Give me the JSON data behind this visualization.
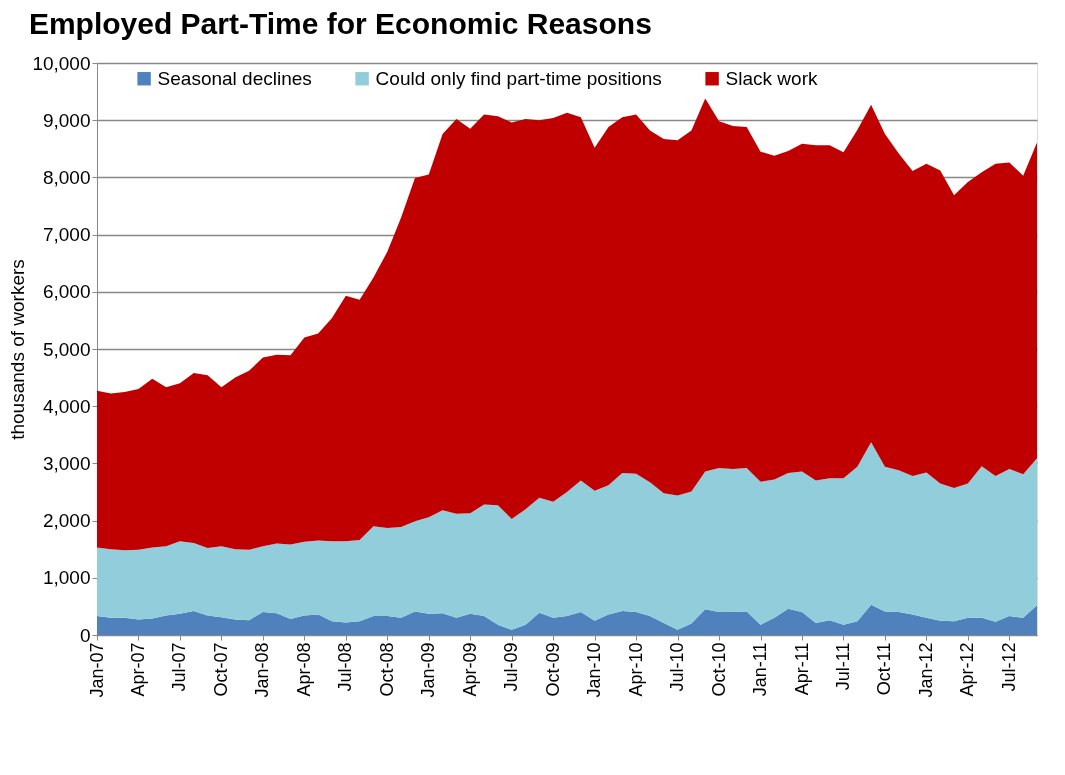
{
  "chart_data": {
    "type": "area",
    "title": "Employed Part-Time for Economic Reasons",
    "ylabel": "thousands of workers",
    "categories": [
      "Jan-07",
      null,
      null,
      "Apr-07",
      null,
      null,
      "Jul-07",
      null,
      null,
      "Oct-07",
      null,
      null,
      "Jan-08",
      null,
      null,
      "Apr-08",
      null,
      null,
      "Jul-08",
      null,
      null,
      "Oct-08",
      null,
      null,
      "Jan-09",
      null,
      null,
      "Apr-09",
      null,
      null,
      "Jul-09",
      null,
      null,
      "Oct-09",
      null,
      null,
      "Jan-10",
      null,
      null,
      "Apr-10",
      null,
      null,
      "Jul-10",
      null,
      null,
      "Oct-10",
      null,
      null,
      "Jan-11",
      null,
      null,
      "Apr-11",
      null,
      null,
      "Jul-11",
      null,
      null,
      "Oct-11",
      null,
      null,
      "Jan-12",
      null,
      null,
      "Apr-12",
      null,
      null,
      "Jul-12",
      null,
      null
    ],
    "stacked": true,
    "series": [
      {
        "name": "Seasonal declines",
        "color": "#4f81bd",
        "values": [
          330,
          300,
          300,
          270,
          290,
          340,
          370,
          420,
          340,
          310,
          270,
          260,
          400,
          380,
          280,
          340,
          360,
          240,
          220,
          240,
          330,
          330,
          300,
          410,
          370,
          380,
          300,
          370,
          330,
          180,
          90,
          180,
          390,
          300,
          330,
          400,
          250,
          360,
          420,
          400,
          330,
          210,
          90,
          200,
          450,
          400,
          400,
          410,
          180,
          300,
          460,
          400,
          210,
          260,
          180,
          240,
          530,
          410,
          400,
          360,
          300,
          250,
          240,
          300,
          300,
          230,
          330,
          300,
          520
        ]
      },
      {
        "name": "Could only find part-time positions",
        "color": "#92cddc",
        "values": [
          1200,
          1200,
          1180,
          1220,
          1240,
          1210,
          1270,
          1190,
          1180,
          1240,
          1230,
          1230,
          1150,
          1220,
          1300,
          1290,
          1290,
          1400,
          1420,
          1420,
          1570,
          1540,
          1590,
          1580,
          1690,
          1800,
          1820,
          1760,
          1950,
          2090,
          1940,
          2020,
          2010,
          2030,
          2170,
          2300,
          2270,
          2260,
          2410,
          2420,
          2340,
          2270,
          2350,
          2310,
          2410,
          2520,
          2500,
          2510,
          2500,
          2420,
          2370,
          2460,
          2490,
          2480,
          2560,
          2700,
          2840,
          2530,
          2480,
          2420,
          2540,
          2400,
          2330,
          2350,
          2650,
          2550,
          2570,
          2510,
          2570
        ]
      },
      {
        "name": "Slack work",
        "color": "#c00000",
        "values": [
          2740,
          2720,
          2770,
          2810,
          2950,
          2780,
          2760,
          2970,
          3020,
          2780,
          3000,
          3130,
          3300,
          3300,
          3310,
          3570,
          3620,
          3900,
          4290,
          4200,
          4350,
          4830,
          5410,
          6000,
          5990,
          6580,
          6900,
          6720,
          6820,
          6800,
          6930,
          6820,
          6600,
          6710,
          6630,
          6350,
          6000,
          6260,
          6220,
          6280,
          6150,
          6190,
          6210,
          6310,
          6520,
          6060,
          6000,
          5960,
          5770,
          5660,
          5630,
          5730,
          5860,
          5820,
          5700,
          5890,
          5900,
          5820,
          5540,
          5330,
          5400,
          5470,
          5120,
          5270,
          5140,
          5460,
          5360,
          5220,
          5520
        ]
      }
    ],
    "ylim": [
      0,
      10000
    ],
    "yticks": [
      0,
      {
        "value": 1000,
        "label": "1,000"
      },
      {
        "value": 2000,
        "label": "2,000"
      },
      {
        "value": 3000,
        "label": "3,000"
      },
      {
        "value": 4000,
        "label": "4,000"
      },
      {
        "value": 5000,
        "label": "5,000"
      },
      {
        "value": 6000,
        "label": "6,000"
      },
      {
        "value": 7000,
        "label": "7,000"
      },
      {
        "value": 8000,
        "label": "8,000"
      },
      {
        "value": 9000,
        "label": "9,000"
      },
      {
        "value": 10000,
        "label": "10,000"
      }
    ],
    "grid": "y",
    "legend": "top"
  }
}
